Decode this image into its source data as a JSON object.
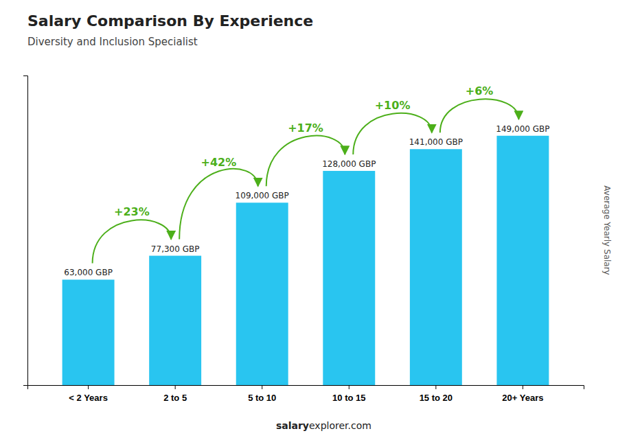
{
  "chart_data": {
    "type": "bar",
    "title": "Salary Comparison By Experience",
    "subtitle": "Diversity and Inclusion Specialist",
    "ylabel": "Average Yearly Salary",
    "categories": [
      "< 2 Years",
      "2 to 5",
      "5 to 10",
      "10 to 15",
      "15 to 20",
      "20+ Years"
    ],
    "values": [
      63000,
      77300,
      109000,
      128000,
      141000,
      149000
    ],
    "value_labels": [
      "63,000 GBP",
      "77,300 GBP",
      "109,000 GBP",
      "128,000 GBP",
      "141,000 GBP",
      "149,000 GBP"
    ],
    "data_labels": true,
    "annotations": [
      "+23%",
      "+42%",
      "+17%",
      "+10%",
      "+6%"
    ],
    "footer": [
      "salary",
      "explorer.com"
    ],
    "color": "#29c5f0",
    "ylim": [
      0,
      185000
    ],
    "tick_labels": "x"
  }
}
